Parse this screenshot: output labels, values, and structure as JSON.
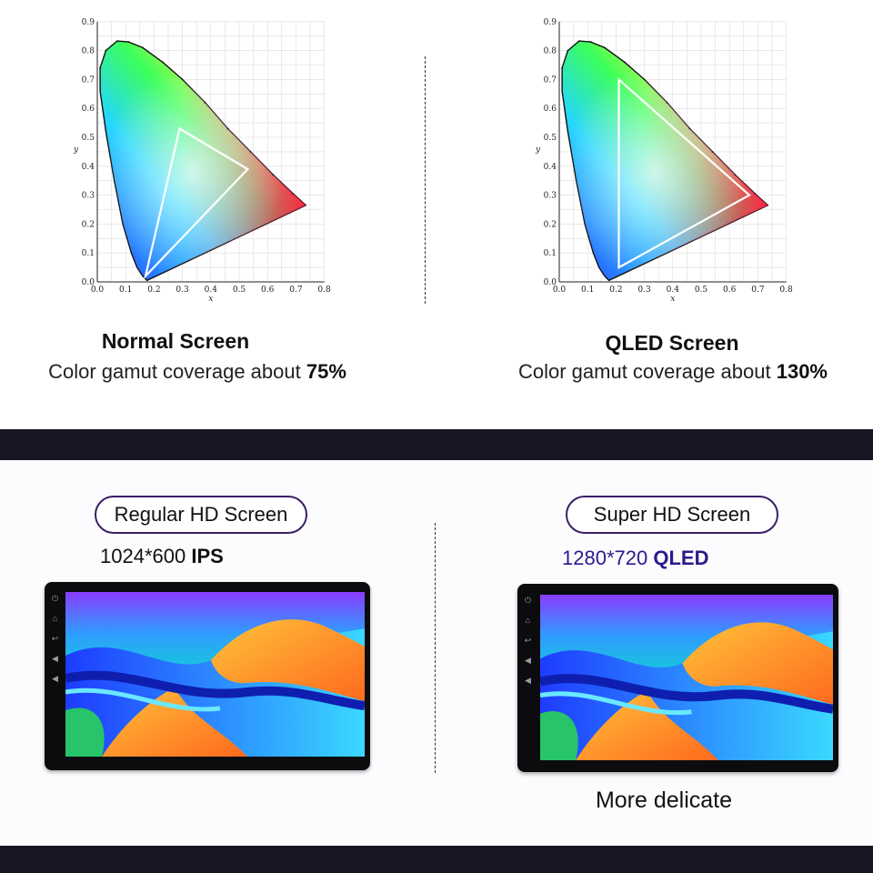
{
  "top": {
    "left": {
      "title": "Normal Screen",
      "line_prefix": "Color gamut coverage about ",
      "line_value": "75%"
    },
    "right": {
      "title": "QLED Screen",
      "line_prefix": "Color gamut coverage about ",
      "line_value": "130%"
    },
    "chart": {
      "x_ticks": [
        "0.0",
        "0.1",
        "0.2",
        "0.3",
        "0.4",
        "0.5",
        "0.6",
        "0.7",
        "0.8"
      ],
      "y_ticks": [
        "0.0",
        "0.1",
        "0.2",
        "0.3",
        "0.4",
        "0.5",
        "0.6",
        "0.7",
        "0.8",
        "0.9"
      ],
      "x_label": "x",
      "y_label": "y"
    }
  },
  "chart_data": [
    {
      "type": "scatter",
      "xlabel": "x",
      "ylabel": "y",
      "xlim": [
        0,
        0.8
      ],
      "ylim": [
        0,
        0.9
      ],
      "grid": true,
      "series": [
        {
          "x": [
            0.17,
            0.29,
            0.53
          ],
          "y": [
            0.02,
            0.53,
            0.39
          ]
        }
      ]
    },
    {
      "type": "scatter",
      "xlabel": "x",
      "ylabel": "y",
      "xlim": [
        0,
        0.8
      ],
      "ylim": [
        0,
        0.9
      ],
      "grid": true,
      "series": [
        {
          "x": [
            0.21,
            0.21,
            0.67
          ],
          "y": [
            0.05,
            0.7,
            0.3
          ]
        }
      ]
    }
  ],
  "bottom": {
    "left": {
      "pill": "Regular HD Screen",
      "spec_num": "1024*600",
      "spec_tech": "IPS"
    },
    "right": {
      "pill": "Super HD Screen",
      "spec_num": "1280*720",
      "spec_tech": "QLED",
      "note": "More delicate"
    }
  },
  "device_icons": [
    "power-icon",
    "home-icon",
    "back-icon",
    "volume-up-icon",
    "volume-down-icon"
  ],
  "colors": {
    "band": "#161722",
    "pill_border": "#3a1f66",
    "qled_text": "#2a1a8a"
  }
}
